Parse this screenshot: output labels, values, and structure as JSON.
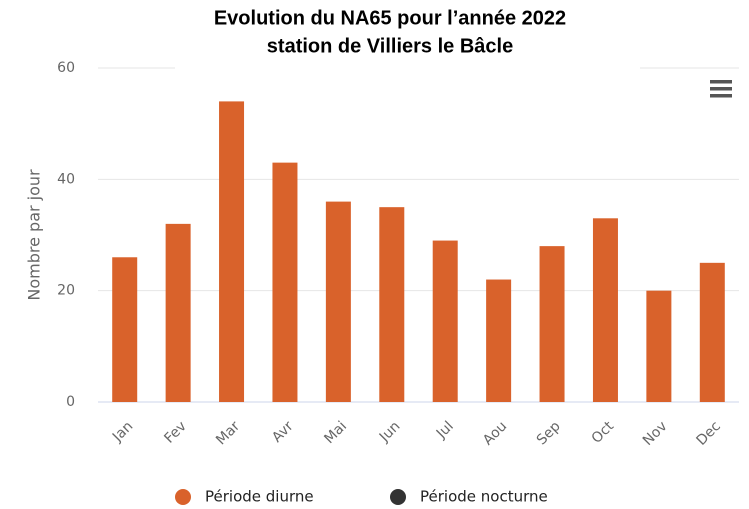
{
  "chart_data": {
    "type": "bar",
    "title": "Evolution du NA65 pour l’année 2022",
    "subtitle": "station de Villiers le Bâcle",
    "y_label": "Nombre par jour",
    "categories": [
      "Jan",
      "Fev",
      "Mar",
      "Avr",
      "Mai",
      "Jun",
      "Jul",
      "Aou",
      "Sep",
      "Oct",
      "Nov",
      "Dec"
    ],
    "series": [
      {
        "name": "Période diurne",
        "color": "#d9622b",
        "values": [
          26,
          32,
          54,
          43,
          36,
          35,
          29,
          22,
          28,
          33,
          20,
          25
        ]
      },
      {
        "name": "Période nocturne",
        "color": "#333333",
        "values": [
          null,
          null,
          null,
          null,
          null,
          null,
          null,
          null,
          null,
          null,
          null,
          null
        ]
      }
    ],
    "ylim": [
      0,
      60
    ],
    "yticks": [
      0,
      20,
      40,
      60
    ],
    "grid": true,
    "legend": "bottom"
  }
}
